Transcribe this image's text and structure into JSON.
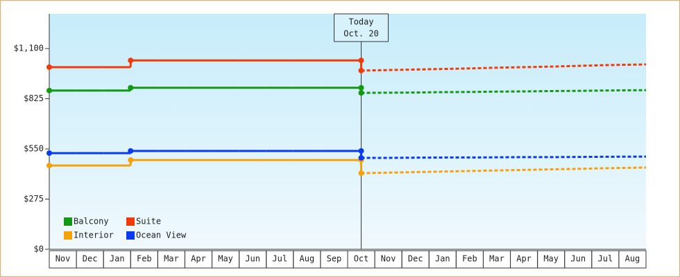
{
  "chart_data": {
    "type": "step-line",
    "categories": [
      "Nov",
      "Dec",
      "Jan",
      "Feb",
      "Mar",
      "Apr",
      "May",
      "Jun",
      "Jul",
      "Aug",
      "Sep",
      "Oct",
      "Nov",
      "Dec",
      "Jan",
      "Feb",
      "Mar",
      "Apr",
      "May",
      "Jun",
      "Jul",
      "Aug"
    ],
    "series": [
      {
        "name": "Balcony",
        "color": "#129912",
        "values": [
          870,
          870,
          870,
          885,
          885,
          885,
          885,
          885,
          885,
          885,
          885,
          885,
          null,
          null,
          null,
          null,
          null,
          null,
          null,
          null,
          null,
          null
        ],
        "forecast": [
          null,
          null,
          null,
          null,
          null,
          null,
          null,
          null,
          null,
          null,
          null,
          857,
          858,
          859,
          861,
          862,
          864,
          865,
          867,
          868,
          870,
          872
        ]
      },
      {
        "name": "Suite",
        "color": "#f03a0a",
        "values": [
          998,
          998,
          998,
          1035,
          1035,
          1035,
          1035,
          1035,
          1035,
          1035,
          1035,
          1035,
          null,
          null,
          null,
          null,
          null,
          null,
          null,
          null,
          null,
          null
        ],
        "forecast": [
          null,
          null,
          null,
          null,
          null,
          null,
          null,
          null,
          null,
          null,
          null,
          979,
          982,
          985,
          988,
          991,
          995,
          998,
          1001,
          1005,
          1009,
          1013
        ]
      },
      {
        "name": "Interior",
        "color": "#f5a20a",
        "values": [
          459,
          459,
          459,
          489,
          489,
          489,
          489,
          489,
          489,
          489,
          489,
          489,
          null,
          null,
          null,
          null,
          null,
          null,
          null,
          null,
          null,
          null
        ],
        "forecast": [
          null,
          null,
          null,
          null,
          null,
          null,
          null,
          null,
          null,
          null,
          null,
          417,
          420,
          423,
          426,
          429,
          432,
          435,
          438,
          441,
          444,
          448
        ]
      },
      {
        "name": "Ocean View",
        "color": "#0a3af0",
        "values": [
          527,
          527,
          527,
          539,
          539,
          539,
          539,
          539,
          539,
          539,
          539,
          539,
          null,
          null,
          null,
          null,
          null,
          null,
          null,
          null,
          null,
          null
        ],
        "forecast": [
          null,
          null,
          null,
          null,
          null,
          null,
          null,
          null,
          null,
          null,
          null,
          501,
          501,
          502,
          503,
          503,
          504,
          505,
          505,
          506,
          507,
          508
        ]
      }
    ],
    "annotation": [
      "Today",
      "Oct. 20"
    ],
    "ylim": [
      0,
      1290
    ],
    "yticks": [
      {
        "value": 0,
        "label": "$0"
      },
      {
        "value": 275,
        "label": "$275"
      },
      {
        "value": 550,
        "label": "$550"
      },
      {
        "value": 825,
        "label": "$825"
      },
      {
        "value": 1100,
        "label": "$1,100"
      }
    ],
    "legend": "lower-left"
  }
}
